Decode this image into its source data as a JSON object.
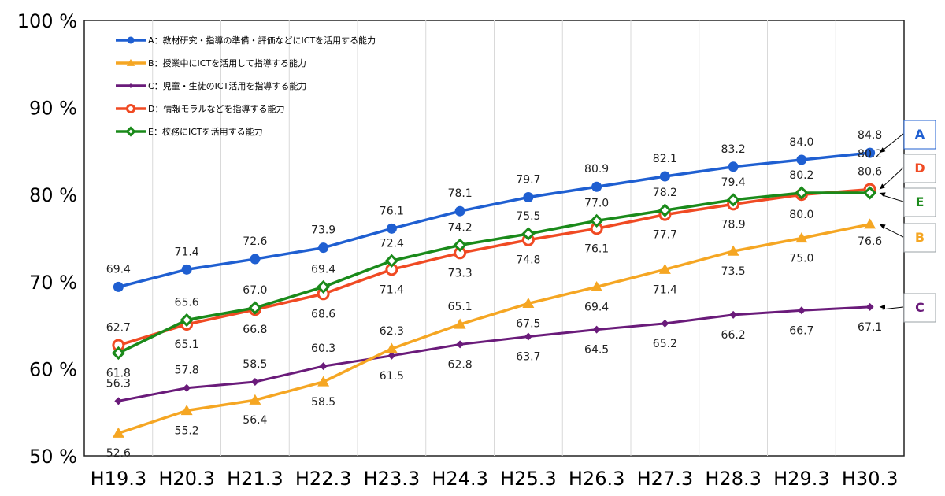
{
  "chart_data": {
    "type": "line",
    "categories": [
      "H19.3",
      "H20.3",
      "H21.3",
      "H22.3",
      "H23.3",
      "H24.3",
      "H25.3",
      "H26.3",
      "H27.3",
      "H28.3",
      "H29.3",
      "H30.3"
    ],
    "ylim": [
      50,
      100
    ],
    "yticks": [
      "50 %",
      "60 %",
      "70 %",
      "80 %",
      "90 %",
      "100 %"
    ],
    "grid": "vertical",
    "legend_placement": "top-left",
    "series": [
      {
        "key": "A",
        "name": "A：教材研究・指導の準備・評価などにICTを活用する能力",
        "color": "#1f5fd1",
        "marker": "circle",
        "values": [
          69.4,
          71.4,
          72.6,
          73.9,
          76.1,
          78.1,
          79.7,
          80.9,
          82.1,
          83.2,
          84.0,
          84.8
        ],
        "labels": [
          "69.4",
          "71.4",
          "72.6",
          "73.9",
          "76.1",
          "78.1",
          "79.7",
          "80.9",
          "82.1",
          "83.2",
          "84.0",
          "84.8"
        ]
      },
      {
        "key": "B",
        "name": "B：授業中にICTを活用して指導する能力",
        "color": "#f5a623",
        "marker": "triangle",
        "values": [
          52.6,
          55.2,
          56.4,
          58.5,
          62.3,
          65.1,
          67.5,
          69.4,
          71.4,
          73.5,
          75.0,
          76.6
        ],
        "labels": [
          "52.6",
          "55.2",
          "56.4",
          "58.5",
          "62.3",
          "65.1",
          "67.5",
          "69.4",
          "71.4",
          "73.5",
          "75.0",
          "76.6"
        ]
      },
      {
        "key": "C",
        "name": "C：児童・生徒のICT活用を指導する能力",
        "color": "#6a1b7a",
        "marker": "diamond",
        "values": [
          56.3,
          57.8,
          58.5,
          60.3,
          61.5,
          62.8,
          63.7,
          64.5,
          65.2,
          66.2,
          66.7,
          67.1
        ],
        "labels": [
          "56.3",
          "57.8",
          "58.5",
          "60.3",
          "61.5",
          "62.8",
          "63.7",
          "64.5",
          "65.2",
          "66.2",
          "66.7",
          "67.1"
        ]
      },
      {
        "key": "D",
        "name": "D：情報モラルなどを指導する能力",
        "color": "#f04a23",
        "marker": "ring",
        "values": [
          62.7,
          65.1,
          66.8,
          68.6,
          71.4,
          73.3,
          74.8,
          76.1,
          77.7,
          78.9,
          80.0,
          80.6
        ],
        "labels": [
          "62.7",
          "65.1",
          "66.8",
          "68.6",
          "71.4",
          "73.3",
          "74.8",
          "76.1",
          "77.7",
          "78.9",
          "80.0",
          "80.6"
        ]
      },
      {
        "key": "E",
        "name": "E：校務にICTを活用する能力",
        "color": "#1a8a1a",
        "marker": "hollow-diamond",
        "values": [
          61.8,
          65.6,
          67.0,
          69.4,
          72.4,
          74.2,
          75.5,
          77.0,
          78.2,
          79.4,
          80.2,
          80.2
        ],
        "labels": [
          "61.8",
          "65.6",
          "67.0",
          "69.4",
          "72.4",
          "74.2",
          "75.5",
          "77.0",
          "78.2",
          "79.4",
          "80.2",
          "80.2"
        ]
      }
    ],
    "end_tags": [
      {
        "key": "A",
        "label": "A",
        "color": "#1f5fd1",
        "border": "#1f5fd1"
      },
      {
        "key": "D",
        "label": "D",
        "color": "#f04a23",
        "border": "#9aa0a6"
      },
      {
        "key": "E",
        "label": "E",
        "color": "#1a8a1a",
        "border": "#9aa0a6"
      },
      {
        "key": "B",
        "label": "B",
        "color": "#f5a623",
        "border": "#9aa0a6"
      },
      {
        "key": "C",
        "label": "C",
        "color": "#6a1b7a",
        "border": "#9aa0a6"
      }
    ]
  }
}
